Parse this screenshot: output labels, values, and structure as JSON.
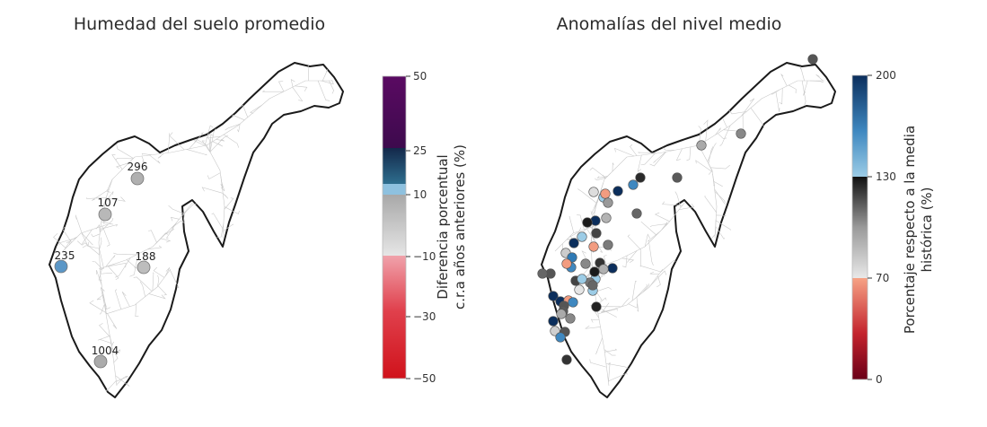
{
  "left_panel": {
    "title": "Humedad del suelo promedio",
    "colorbar": {
      "label_line1": "Diferencia porcentual",
      "label_line2": "c.r.a años anteriores (%)",
      "ticks": [
        "50",
        "25",
        "10",
        "−10",
        "−30",
        "−50"
      ],
      "colors": {
        "band_50_25": "#3d0a4d",
        "band_25_10": "#16405e",
        "band_10_light": "#8ec1df",
        "band_neutral_top": "#a8a8a8",
        "band_neutral_bottom": "#e6e6e6",
        "band_m10": "#f0a2ab",
        "band_m50": "#d0121b"
      }
    },
    "stations": [
      {
        "label": "296",
        "color": "#b0b0b0"
      },
      {
        "label": "107",
        "color": "#b8b8b8"
      },
      {
        "label": "235",
        "color": "#5b97c7"
      },
      {
        "label": "188",
        "color": "#bdbdbd"
      },
      {
        "label": "1004",
        "color": "#ababab"
      }
    ]
  },
  "right_panel": {
    "title": "Anomalías del nivel medio",
    "colorbar": {
      "label_line1": "Porcentaje respecto a la media",
      "label_line2": "histórica (%)",
      "ticks": [
        "200",
        "130",
        "70",
        "0"
      ],
      "colors": {
        "top": "#0b2e5c",
        "upper_mid": "#3f88c0",
        "upper_low": "#9ccce6",
        "mid_black": "#111111",
        "mid_grey": "#9a9a9a",
        "mid_light": "#e8e8e8",
        "salmon": "#f6a285",
        "red": "#c3232d",
        "bottom": "#6a0018"
      }
    },
    "station_colors": [
      "#555555",
      "#888888",
      "#aaaaaa",
      "#5a5a5a",
      "#2b2b2b",
      "#0b2e5c",
      "#3f88c0",
      "#9ccce6",
      "#f29c80",
      "#dddddd",
      "#999999",
      "#0b2e5c",
      "#666666",
      "#1b1b1b",
      "#b3b3b3",
      "#9ccce6",
      "#f29c80",
      "#444444",
      "#3f88c0",
      "#7a7a7a",
      "#0b2e5c",
      "#cccccc",
      "#555555",
      "#2f7ab5",
      "#f29c80",
      "#888888",
      "#0b2e5c",
      "#9ccce6",
      "#666666",
      "#333333",
      "#b0b0b0",
      "#1a1a1a",
      "#0b2e5c",
      "#777777",
      "#9ccce6",
      "#444444",
      "#e5e5e5",
      "#0b2e5c",
      "#f29c80",
      "#555555",
      "#5a5a5a",
      "#3f88c0",
      "#222222",
      "#aaaaaa",
      "#888888",
      "#0b2e5c",
      "#9ccce6",
      "#666666",
      "#cfcfcf",
      "#555555",
      "#3f88c0",
      "#333333"
    ]
  }
}
